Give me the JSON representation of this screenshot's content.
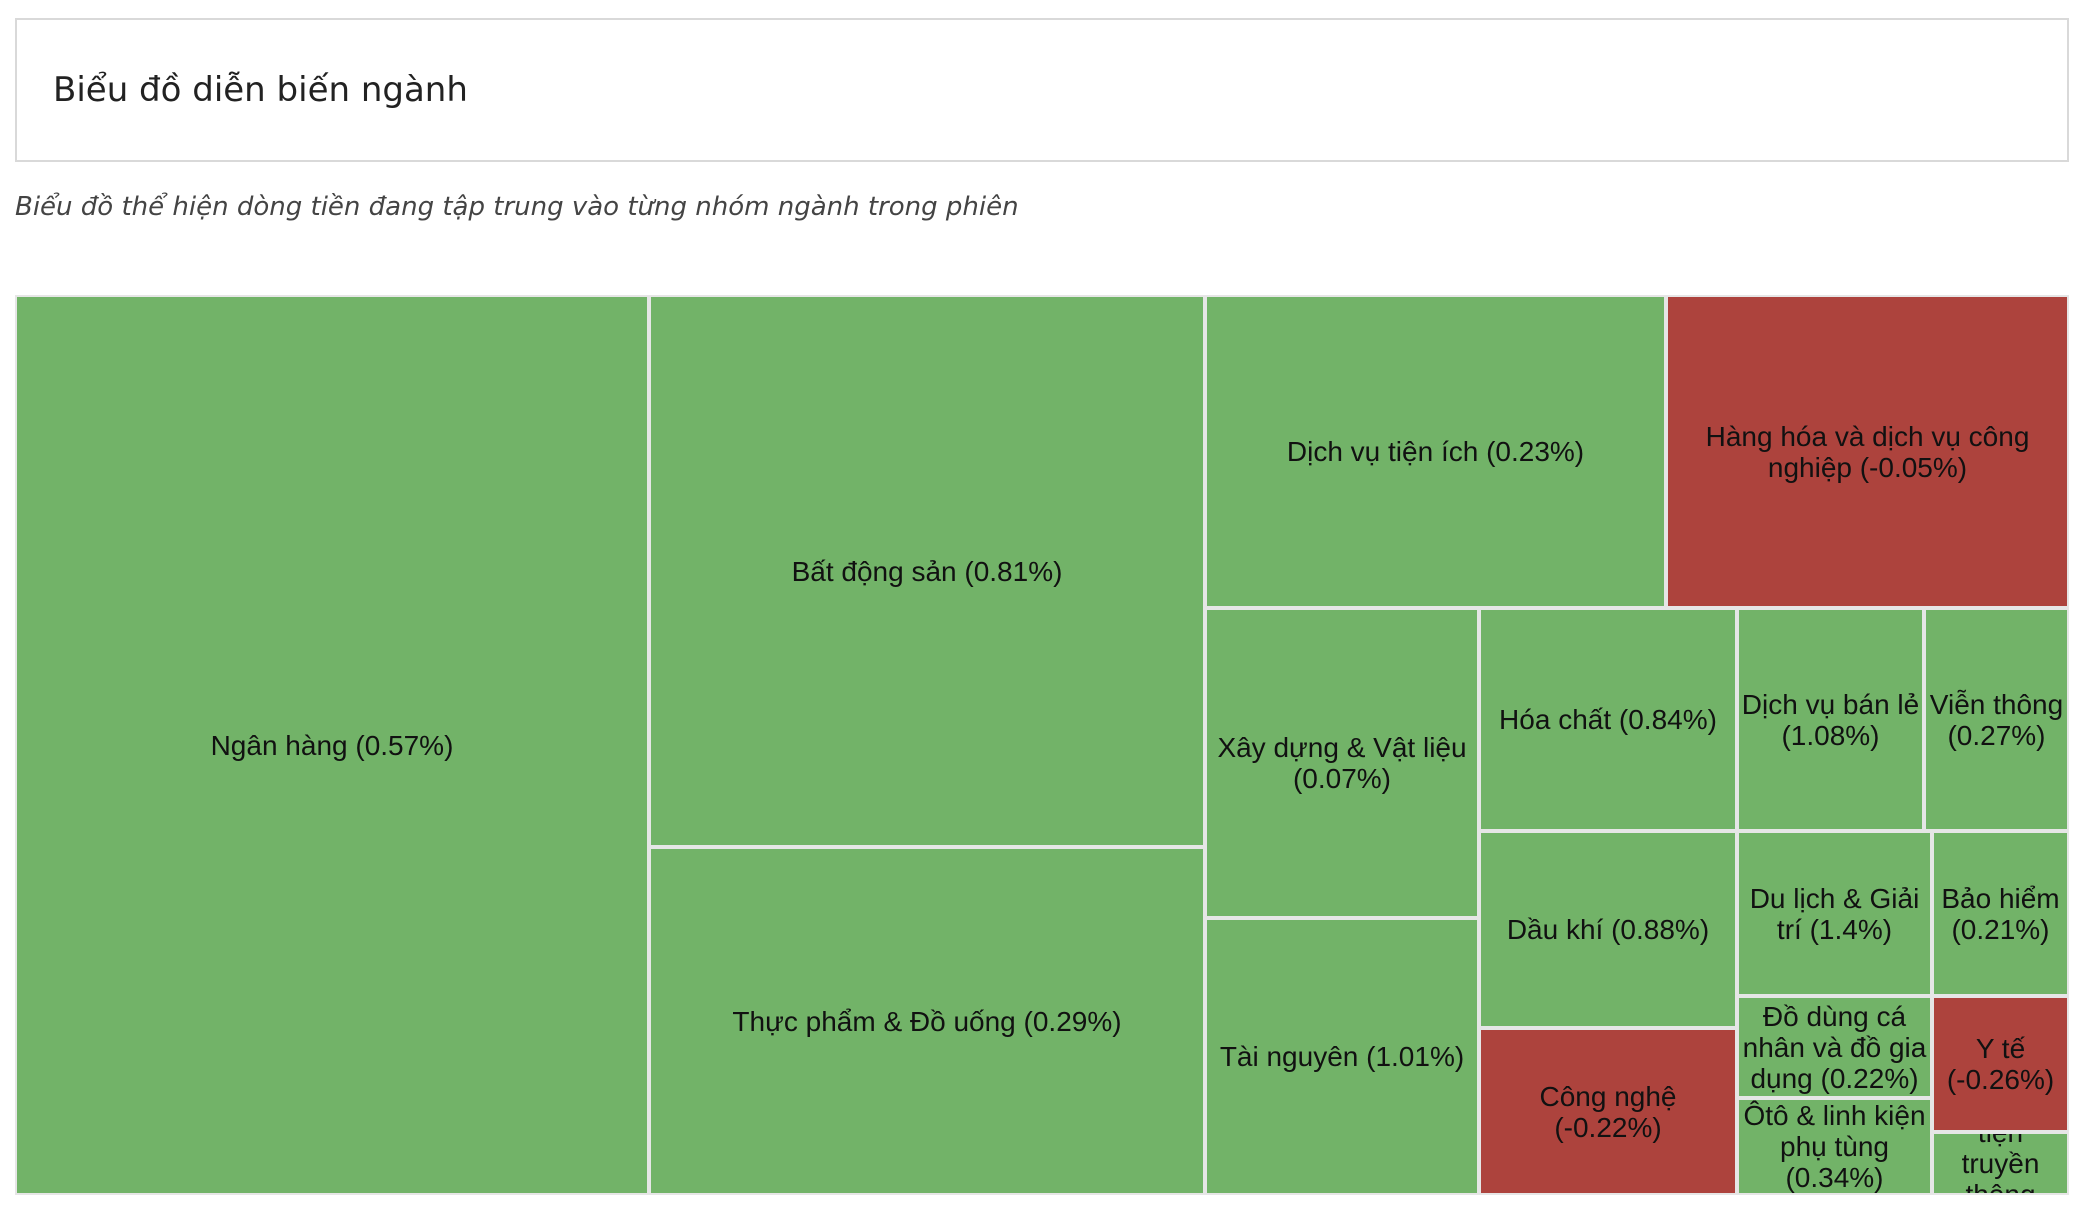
{
  "header": {
    "title": "Biểu đồ diễn biến ngành",
    "subtitle": "Biểu đồ thể hiện dòng tiền đang tập trung vào từng nhóm ngành trong phiên"
  },
  "colors": {
    "positive": "#72b368",
    "negative": "#ad433d",
    "border": "#e6e6e6"
  },
  "chart_data": {
    "type": "treemap",
    "items": [
      {
        "name": "Ngân hàng",
        "change": 0.57,
        "label": "Ngân hàng (0.57%)"
      },
      {
        "name": "Bất động sản",
        "change": 0.81,
        "label": "Bất động sản (0.81%)"
      },
      {
        "name": "Thực phẩm & Đồ uống",
        "change": 0.29,
        "label": "Thực phẩm & Đồ uống (0.29%)"
      },
      {
        "name": "Dịch vụ tiện ích",
        "change": 0.23,
        "label": "Dịch vụ tiện ích (0.23%)"
      },
      {
        "name": "Hàng hóa và dịch vụ công nghiệp",
        "change": -0.05,
        "label": "Hàng hóa và dịch vụ công nghiệp (-0.05%)"
      },
      {
        "name": "Xây dựng & Vật liệu",
        "change": 0.07,
        "label": "Xây dựng & Vật liệu (0.07%)"
      },
      {
        "name": "Tài nguyên",
        "change": 1.01,
        "label": "Tài nguyên (1.01%)"
      },
      {
        "name": "Hóa chất",
        "change": 0.84,
        "label": "Hóa chất (0.84%)"
      },
      {
        "name": "Dầu khí",
        "change": 0.88,
        "label": "Dầu khí (0.88%)"
      },
      {
        "name": "Công nghệ",
        "change": -0.22,
        "label": "Công nghệ (-0.22%)"
      },
      {
        "name": "Dịch vụ bán lẻ",
        "change": 1.08,
        "label": "Dịch vụ bán lẻ (1.08%)"
      },
      {
        "name": "Viễn thông",
        "change": 0.27,
        "label": "Viễn thông (0.27%)"
      },
      {
        "name": "Du lịch & Giải trí",
        "change": 1.4,
        "label": "Du lịch & Giải trí (1.4%)"
      },
      {
        "name": "Bảo hiểm",
        "change": 0.21,
        "label": "Bảo hiểm (0.21%)"
      },
      {
        "name": "Đồ dùng cá nhân và đồ gia dụng",
        "change": 0.22,
        "label": "Đồ dùng cá nhân và đồ gia dụng (0.22%)"
      },
      {
        "name": "Y tế",
        "change": -0.26,
        "label": "Y tế (-0.26%)"
      },
      {
        "name": "Ôtô & linh kiện phụ tùng",
        "change": 0.34,
        "label": "Ôtô & linh kiện phụ tùng (0.34%)"
      },
      {
        "name": "tiện truyền thông",
        "change": null,
        "label": "tiện truyền thông"
      }
    ]
  }
}
